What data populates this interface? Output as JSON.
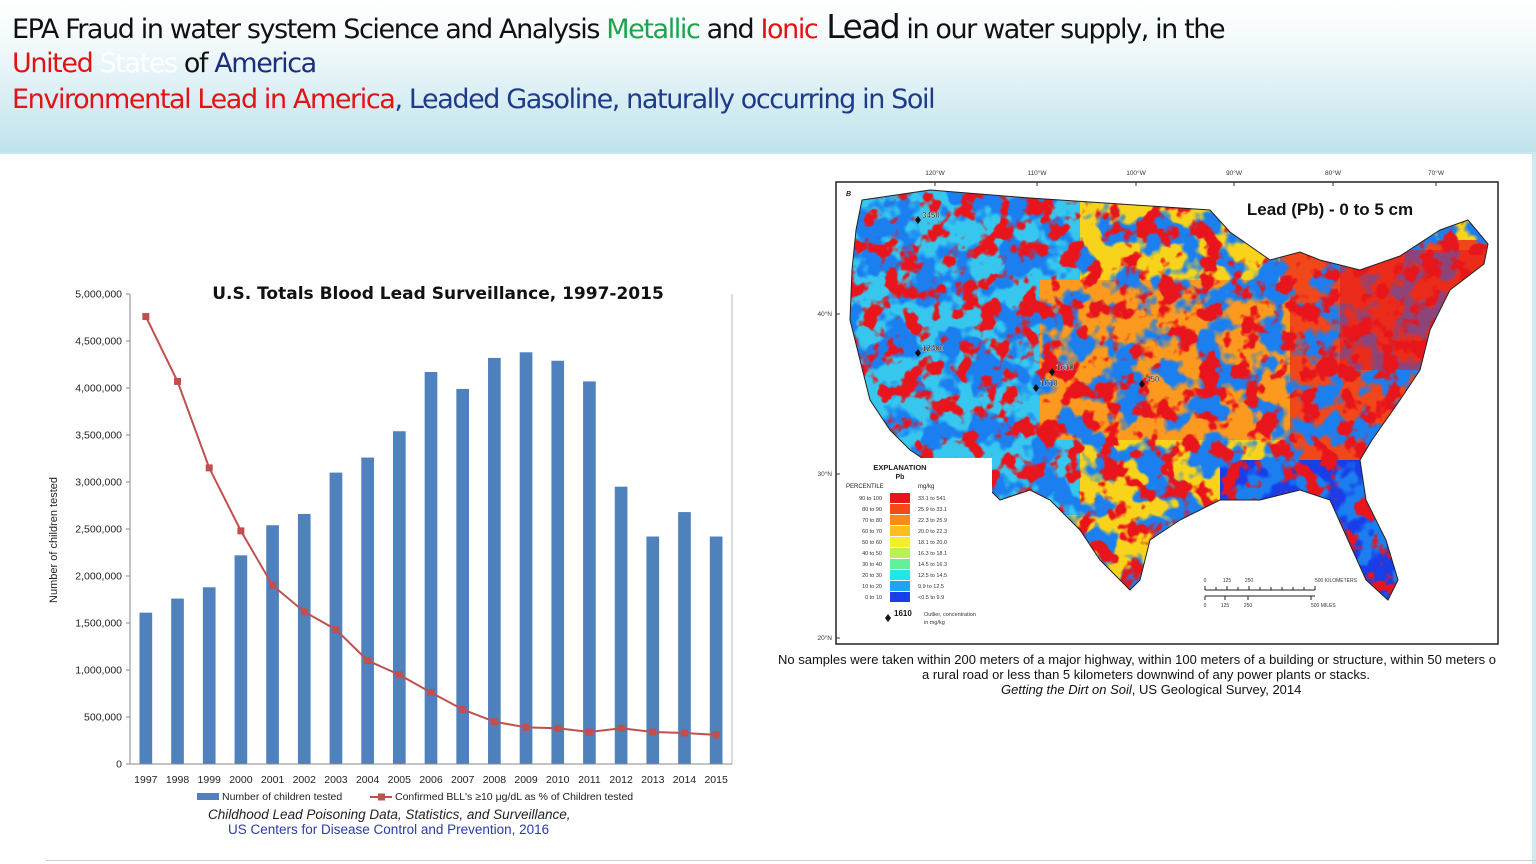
{
  "header": {
    "line1_a": "EPA Fraud in water system Science and Analysis ",
    "line1_metallic": "Metallic",
    "line1_and": " and ",
    "line1_ionic": "Ionic",
    "line1_lead": " Lead",
    "line1_rest": " in our water supply, in the",
    "line2_united": "United",
    "line2_states": " States",
    "line2_of": " of ",
    "line2_america": "America",
    "line3_env": "Environmental  Lead in America",
    "line3_rest": ", Leaded Gasoline, naturally occurring in Soil"
  },
  "colors": {
    "bar": "#4f81bd",
    "line": "#c0504d",
    "title_green": "#1ea24c",
    "title_red": "#e21313",
    "title_navy": "#1a2f7a"
  },
  "chart_data": {
    "type": "bar",
    "title": "U.S. Totals Blood Lead Surveillance, 1997-2015",
    "ylabel": "Number of children tested",
    "xlabel": "",
    "ylim": [
      0,
      5000000
    ],
    "y_ticks": [
      "0",
      "500,000",
      "1,000,000",
      "1,500,000",
      "2,000,000",
      "2,500,000",
      "3,000,000",
      "3,500,000",
      "4,000,000",
      "4,500,000",
      "5,000,000"
    ],
    "categories": [
      "1997",
      "1998",
      "1999",
      "2000",
      "2001",
      "2002",
      "2003",
      "2004",
      "2005",
      "2006",
      "2007",
      "2008",
      "2009",
      "2010",
      "2011",
      "2012",
      "2013",
      "2014",
      "2015"
    ],
    "series": [
      {
        "name": "Number of children tested",
        "type": "bar",
        "values": [
          1610000,
          1760000,
          1880000,
          2220000,
          2540000,
          2660000,
          3100000,
          3260000,
          3540000,
          4170000,
          3990000,
          4320000,
          4380000,
          4290000,
          4070000,
          2950000,
          2420000,
          2680000,
          2420000
        ]
      },
      {
        "name": "Confirmed BLL's ≥10 μg/dL as % of Children tested",
        "type": "line",
        "values": [
          4760000,
          4070000,
          3150000,
          2480000,
          1900000,
          1620000,
          1430000,
          1100000,
          950000,
          760000,
          580000,
          450000,
          390000,
          380000,
          340000,
          380000,
          340000,
          330000,
          310000
        ]
      }
    ],
    "grid": false,
    "legend": "bottom"
  },
  "chart_source": {
    "line1": "Childhood Lead Poisoning Data, Statistics, and Surveillance,",
    "line2": "US Centers for Disease Control and Prevention, 2016"
  },
  "map": {
    "panel_letter": "B",
    "title": "Lead (Pb) - 0 to 5 cm",
    "lon_labels": [
      "120°W",
      "110°W",
      "100°W",
      "90°W",
      "80°W",
      "70°W"
    ],
    "lat_labels": [
      "40°N",
      "30°N",
      "20°N"
    ],
    "explanation_title": "EXPLANATION",
    "explanation_sub": "Pb",
    "percentile_header": "PERCENTILE",
    "unit_header": "mg/kg",
    "legend": [
      {
        "pct": "90 to 100",
        "range": "33.1 to 541",
        "color": "#e8161b"
      },
      {
        "pct": "80 to 90",
        "range": "25.9 to 33.1",
        "color": "#f64a16"
      },
      {
        "pct": "70 to 80",
        "range": "22.3 to 25.9",
        "color": "#fb8a1a"
      },
      {
        "pct": "60 to 70",
        "range": "20.0 to 22.3",
        "color": "#fdbe1c"
      },
      {
        "pct": "50 to 60",
        "range": "18.1 to 20.0",
        "color": "#f4ef2a"
      },
      {
        "pct": "40 to 50",
        "range": "16.3 to 18.1",
        "color": "#b9f052"
      },
      {
        "pct": "30 to 40",
        "range": "14.5 to 16.3",
        "color": "#63ef9c"
      },
      {
        "pct": "20 to 30",
        "range": "12.5 to 14.5",
        "color": "#1ee7e5"
      },
      {
        "pct": "10 to 20",
        "range": "9.9 to 12.5",
        "color": "#1aa6f4"
      },
      {
        "pct": "0 to 10",
        "range": "<0.5 to 9.9",
        "color": "#1a3dea"
      }
    ],
    "outlier_value": "1610",
    "outlier_label": "Outlier, concentration",
    "outlier_unit": "in mg/kg",
    "outliers": [
      "3450",
      "12400",
      "1610",
      "1010",
      "450"
    ],
    "scale_km_labels": [
      "0",
      "125",
      "250",
      "500 KILOMETERS"
    ],
    "scale_mi_labels": [
      "0",
      "125",
      "250",
      "500 MILES"
    ]
  },
  "map_caption": {
    "line1": "No samples were taken within 200 meters of a major highway, within 100 meters of a building or structure, within 50 meters o",
    "line2": "a rural road or less than 5 kilometers downwind of any power plants or stacks.",
    "line3_italic": "Getting the Dirt on Soil",
    "line3_rest": ", US Geological Survey, 2014"
  }
}
